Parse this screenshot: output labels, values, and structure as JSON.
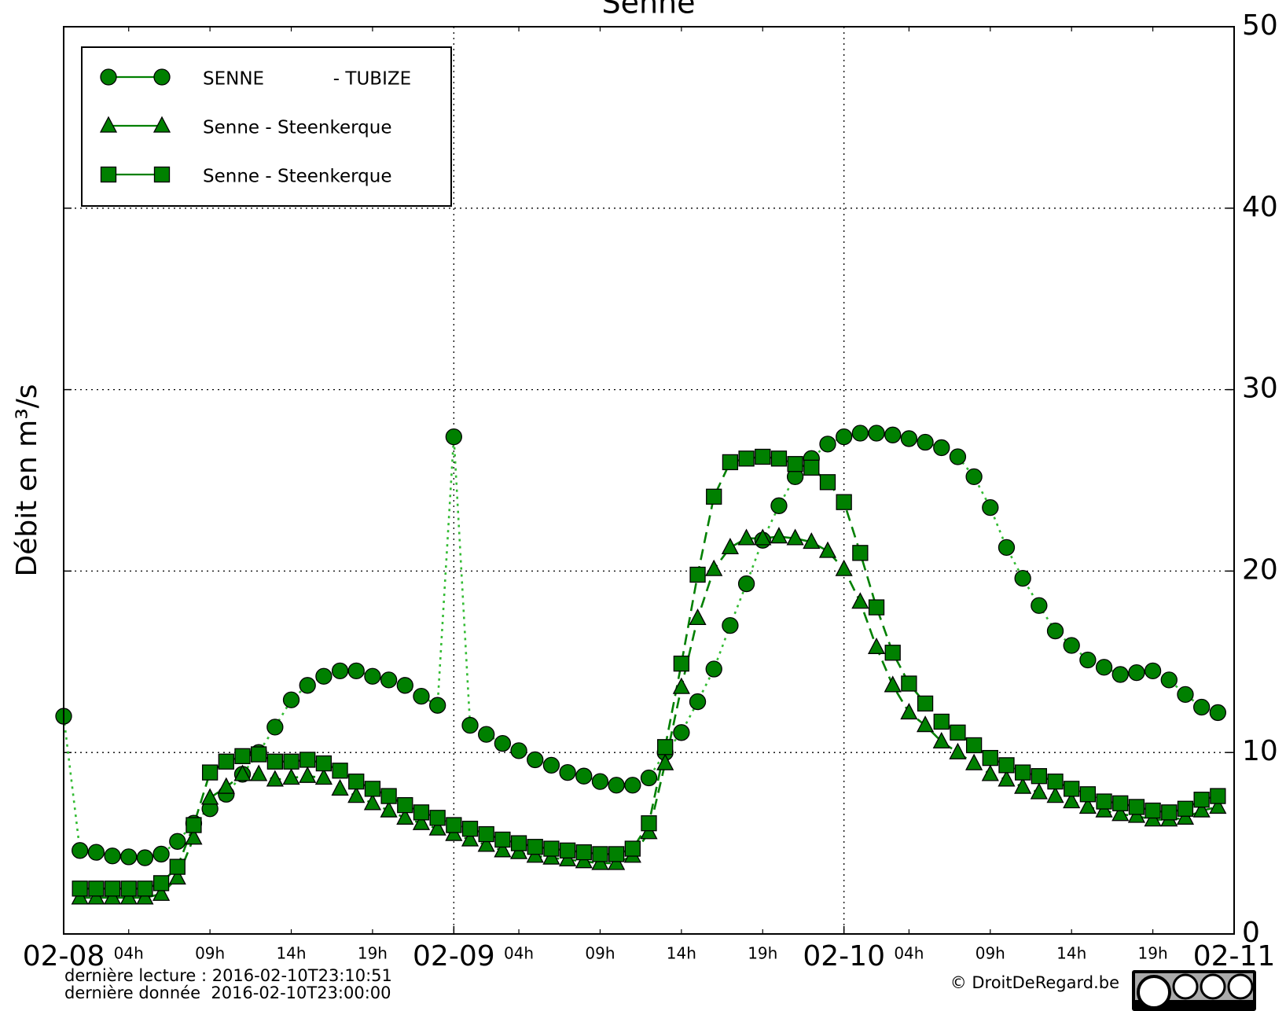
{
  "chart_data": {
    "type": "line",
    "title": "Senne",
    "y_label": "Débit en m³/s",
    "y_axis_side": "right",
    "x": [
      0,
      1,
      2,
      3,
      4,
      5,
      6,
      7,
      8,
      9,
      10,
      11,
      12,
      13,
      14,
      15,
      16,
      17,
      18,
      19,
      20,
      21,
      22,
      23,
      24,
      25,
      26,
      27,
      28,
      29,
      30,
      31,
      32,
      33,
      34,
      35,
      36,
      37,
      38,
      39,
      40,
      41,
      42,
      43,
      44,
      45,
      46,
      47,
      48,
      49,
      50,
      51,
      52,
      53,
      54,
      55,
      56,
      57,
      58,
      59,
      60,
      61,
      62,
      63,
      64,
      65,
      66,
      67,
      68,
      69,
      70,
      71
    ],
    "xlim": [
      0,
      72
    ],
    "xticks_major": [
      {
        "value": 0,
        "label": "02-08"
      },
      {
        "value": 24,
        "label": "02-09"
      },
      {
        "value": 48,
        "label": "02-10"
      },
      {
        "value": 72,
        "label": "02-11"
      }
    ],
    "xticks_minor": [
      {
        "value": 4,
        "label": "04h"
      },
      {
        "value": 9,
        "label": "09h"
      },
      {
        "value": 14,
        "label": "14h"
      },
      {
        "value": 19,
        "label": "19h"
      },
      {
        "value": 28,
        "label": "04h"
      },
      {
        "value": 33,
        "label": "09h"
      },
      {
        "value": 38,
        "label": "14h"
      },
      {
        "value": 43,
        "label": "19h"
      },
      {
        "value": 52,
        "label": "04h"
      },
      {
        "value": 57,
        "label": "09h"
      },
      {
        "value": 62,
        "label": "14h"
      },
      {
        "value": 67,
        "label": "19h"
      }
    ],
    "ylim": [
      0,
      50
    ],
    "yticks": [
      0,
      10,
      20,
      30,
      40,
      50
    ],
    "grid": true,
    "legend_position": "upper left",
    "series": [
      {
        "name": "SENNE            - TUBIZE",
        "color": "#008000",
        "line_color": "#33bb33",
        "linestyle": "dotted",
        "marker": "circle",
        "values": [
          12.0,
          4.6,
          4.5,
          4.3,
          4.25,
          4.2,
          4.4,
          5.1,
          6.1,
          6.9,
          7.7,
          8.8,
          10.0,
          11.4,
          12.9,
          13.7,
          14.2,
          14.5,
          14.5,
          14.2,
          14.0,
          13.7,
          13.1,
          12.6,
          27.4,
          11.5,
          11.0,
          10.5,
          10.1,
          9.6,
          9.3,
          8.9,
          8.7,
          8.4,
          8.2,
          8.2,
          8.6,
          10.0,
          11.1,
          12.8,
          14.6,
          17.0,
          19.3,
          21.7,
          23.6,
          25.2,
          26.2,
          27.0,
          27.4,
          27.6,
          27.6,
          27.5,
          27.3,
          27.1,
          26.8,
          26.3,
          25.2,
          23.5,
          21.3,
          19.6,
          18.1,
          16.7,
          15.9,
          15.1,
          14.7,
          14.3,
          14.4,
          14.5,
          14.0,
          13.2,
          12.5,
          12.2
        ]
      },
      {
        "name": "Senne - Steenkerque",
        "color": "#008000",
        "line_color": "#008000",
        "linestyle": "dashed",
        "marker": "triangle",
        "values": [
          null,
          2.0,
          2.0,
          2.0,
          2.0,
          2.0,
          2.2,
          3.1,
          5.3,
          7.5,
          8.1,
          8.8,
          8.8,
          8.5,
          8.6,
          8.7,
          8.6,
          8.0,
          7.6,
          7.2,
          6.8,
          6.4,
          6.1,
          5.8,
          5.5,
          5.2,
          4.9,
          4.6,
          4.5,
          4.3,
          4.2,
          4.1,
          4.0,
          3.9,
          3.9,
          4.3,
          5.6,
          9.4,
          13.6,
          17.4,
          20.1,
          21.3,
          21.8,
          21.8,
          21.9,
          21.8,
          21.6,
          21.1,
          20.1,
          18.3,
          15.8,
          13.7,
          12.2,
          11.5,
          10.6,
          10.0,
          9.4,
          8.8,
          8.5,
          8.1,
          7.8,
          7.6,
          7.3,
          7.0,
          6.8,
          6.6,
          6.5,
          6.3,
          6.3,
          6.4,
          6.8,
          7.0
        ]
      },
      {
        "name": "Senne - Steenkerque",
        "color": "#008000",
        "line_color": "#008000",
        "linestyle": "dashed",
        "marker": "square",
        "values": [
          null,
          2.5,
          2.5,
          2.5,
          2.5,
          2.5,
          2.8,
          3.7,
          6.0,
          8.9,
          9.5,
          9.8,
          9.9,
          9.5,
          9.5,
          9.6,
          9.4,
          9.0,
          8.4,
          8.0,
          7.6,
          7.1,
          6.7,
          6.4,
          6.0,
          5.8,
          5.5,
          5.2,
          5.0,
          4.8,
          4.7,
          4.6,
          4.5,
          4.4,
          4.4,
          4.7,
          6.1,
          10.3,
          14.9,
          19.8,
          24.1,
          26.0,
          26.2,
          26.3,
          26.2,
          25.9,
          25.7,
          24.9,
          23.8,
          21.0,
          18.0,
          15.5,
          13.8,
          12.7,
          11.7,
          11.1,
          10.4,
          9.7,
          9.3,
          8.9,
          8.7,
          8.4,
          8.0,
          7.7,
          7.3,
          7.2,
          7.0,
          6.8,
          6.7,
          6.9,
          7.4,
          7.6
        ]
      }
    ],
    "footer_left": [
      "dernière lecture : 2016-02-10T23:10:51",
      "dernière donnée  2016-02-10T23:00:00"
    ],
    "footer_right": "© DroitDeRegard.be"
  }
}
